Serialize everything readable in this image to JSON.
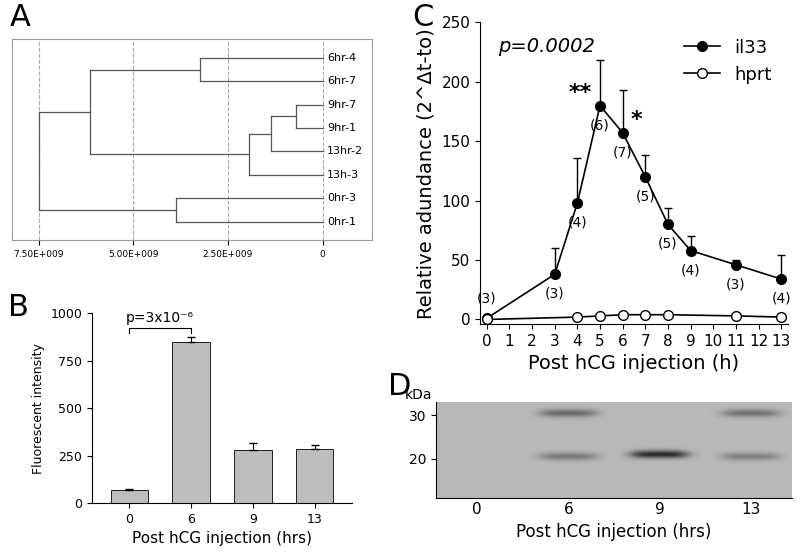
{
  "chart_data": [
    {
      "type": "dendrogram",
      "title": "A",
      "tree": {
        "height": 7500000000,
        "children": [
          {
            "height": 6130000000,
            "children": [
              {
                "height": 3230000000,
                "children": [
                  "6hr-4",
                  "6hr-7"
                ]
              },
              {
                "height": 1940000000,
                "children": [
                  {
                    "height": 1370000000,
                    "children": [
                      {
                        "height": 700000000,
                        "children": [
                          "9hr-7",
                          "9hr-1"
                        ]
                      },
                      "13hr-2"
                    ]
                  },
                  "13h-3"
                ]
              }
            ]
          },
          {
            "height": 3880000000,
            "children": [
              "0hr-3",
              "0hr-1"
            ]
          }
        ]
      },
      "xlim": [
        8200000000,
        -1300000000
      ],
      "xticks": [
        {
          "value": 7500000000,
          "label": "7.50E+009"
        },
        {
          "value": 5000000000,
          "label": "5.00E+009"
        },
        {
          "value": 2500000000,
          "label": "2.50E+009"
        },
        0
      ],
      "grid": true,
      "tick_labels": "x",
      "color": "#555555"
    },
    {
      "type": "bar",
      "title": "B",
      "categories": [
        "0",
        "6",
        "9",
        "13"
      ],
      "values": [
        70,
        848,
        278,
        283
      ],
      "errors": [
        3,
        25,
        40,
        25
      ],
      "color": "#bdbdbd",
      "ylim": [
        0,
        1000
      ],
      "yticks": [
        0,
        250,
        500,
        750,
        1000
      ],
      "x_label": "Post hCG injection (hrs)",
      "y_label": "Fluorescent intensity",
      "annotations": [
        {
          "text": "p=3x10⁻⁶",
          "from": "0",
          "to": "6"
        }
      ]
    },
    {
      "type": "line",
      "title": "C",
      "series": [
        {
          "name": "il33",
          "color": "#000000",
          "marker": "filled_circle",
          "line_style": "solid",
          "x": [
            0,
            3,
            4,
            5,
            6,
            7,
            8,
            9,
            11,
            13
          ],
          "values": [
            1,
            38,
            98,
            180,
            157,
            120,
            80,
            58,
            46,
            34
          ],
          "errors": [
            0,
            22,
            38,
            38,
            36,
            18,
            14,
            12,
            4,
            20
          ],
          "n_labels": [
            "(3)",
            "(3)",
            "(4)",
            "(6)",
            "(7)",
            "(5)",
            "(5)",
            "(4)",
            "(3)",
            "(4)"
          ]
        },
        {
          "name": "hprt",
          "color": "#000000",
          "marker": "open_circle",
          "line_style": "solid",
          "x": [
            0,
            4,
            5,
            6,
            7,
            8,
            11,
            13
          ],
          "values": [
            0,
            2,
            3,
            4,
            4,
            4,
            3,
            2
          ]
        }
      ],
      "xlim": [
        -0.3,
        13.3
      ],
      "xticks": [
        0,
        1,
        2,
        3,
        4,
        5,
        6,
        7,
        8,
        9,
        10,
        11,
        12,
        13
      ],
      "ylim": [
        -4,
        250
      ],
      "yticks": [
        0,
        50,
        100,
        150,
        200,
        250
      ],
      "x_label": "Post hCG injection (h)",
      "y_label": "Relative adundance (2^Δt-to)",
      "legend": "upper right",
      "annotations": [
        {
          "text": "p=0.0002"
        },
        {
          "text": "**",
          "x": 5
        },
        {
          "text": "*",
          "x": 6
        }
      ]
    },
    {
      "type": "blot",
      "title": "D",
      "categories": [
        "0",
        "6",
        "9",
        "13"
      ],
      "bands": [
        {
          "lane": "6",
          "kDa": 30.5,
          "intensity": 0.55
        },
        {
          "lane": "6",
          "kDa": 20.5,
          "intensity": 0.45
        },
        {
          "lane": "9",
          "kDa": 21,
          "intensity": 1.0
        },
        {
          "lane": "13",
          "kDa": 30.5,
          "intensity": 0.5
        },
        {
          "lane": "13",
          "kDa": 20.5,
          "intensity": 0.4
        }
      ],
      "ylim": [
        11,
        33
      ],
      "yticks": [
        20,
        30
      ],
      "y_label": "kDa",
      "x_label": "Post hCG injection (hrs)"
    }
  ]
}
